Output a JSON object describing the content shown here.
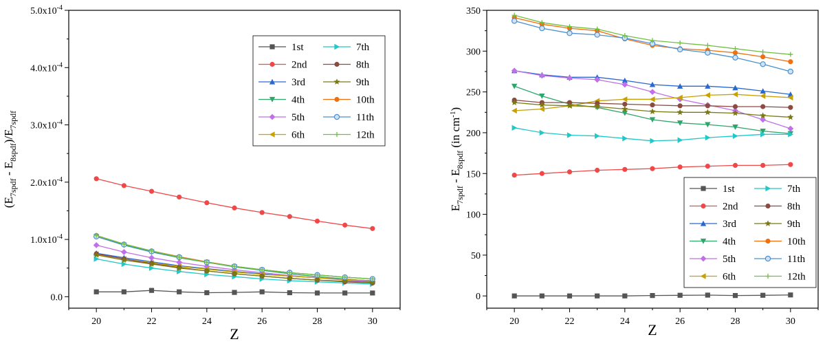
{
  "chart_data": [
    {
      "type": "line",
      "xlabel": "Z",
      "ylabel": "(E7spdf - E8spdf)/E7spdf",
      "ylabel_parts": {
        "open": "(E",
        "sub1": "7spdf",
        "minus": " - E",
        "sub2": "8spdf",
        "close": ")/E",
        "sub3": "7spdf"
      },
      "xlim": [
        19,
        31
      ],
      "ylim": [
        -2e-05,
        0.0005
      ],
      "x_ticks": [
        20,
        22,
        24,
        26,
        28,
        30
      ],
      "x_tick_labels": [
        "20",
        "22",
        "24",
        "26",
        "28",
        "30"
      ],
      "y_ticks": [
        0,
        0.0001,
        0.0002,
        0.0003,
        0.0004,
        0.0005
      ],
      "y_tick_labels": [
        {
          "mant": "0.0",
          "exp": ""
        },
        {
          "mant": "1.0x10",
          "exp": "-4"
        },
        {
          "mant": "2.0x10",
          "exp": "-4"
        },
        {
          "mant": "3.0x10",
          "exp": "-4"
        },
        {
          "mant": "4.0x10",
          "exp": "-4"
        },
        {
          "mant": "5.0x10",
          "exp": "-4"
        }
      ],
      "legend_position": "top-right",
      "x": [
        20,
        21,
        22,
        23,
        24,
        25,
        26,
        27,
        28,
        29,
        30
      ],
      "series": [
        {
          "name": "1st",
          "color": "#555555",
          "marker": "square",
          "values": [
            8.5e-06,
            8.5e-06,
            1.1e-05,
            8.5e-06,
            7e-06,
            7.5e-06,
            8.5e-06,
            7e-06,
            6.5e-06,
            6.5e-06,
            6.5e-06
          ]
        },
        {
          "name": "2nd",
          "color": "#f04848",
          "marker": "circle",
          "values": [
            0.000206,
            0.000194,
            0.000184,
            0.000174,
            0.000164,
            0.000155,
            0.000147,
            0.00014,
            0.000132,
            0.000125,
            0.000119
          ]
        },
        {
          "name": "3rd",
          "color": "#2868d0",
          "marker": "triangle-up",
          "values": [
            7.6e-05,
            6.8e-05,
            6.1e-05,
            5.4e-05,
            4.9e-05,
            4.4e-05,
            4e-05,
            3.6e-05,
            3.3e-05,
            3e-05,
            2.8e-05
          ]
        },
        {
          "name": "4th",
          "color": "#2ea56a",
          "marker": "triangle-down",
          "values": [
            0.000105,
            9e-05,
            7.8e-05,
            6.8e-05,
            6e-05,
            5.2e-05,
            4.6e-05,
            4e-05,
            3.5e-05,
            3.1e-05,
            2.7e-05
          ]
        },
        {
          "name": "5th",
          "color": "#c070e8",
          "marker": "diamond",
          "values": [
            9e-05,
            7.8e-05,
            6.8e-05,
            6e-05,
            5.3e-05,
            4.7e-05,
            4.2e-05,
            3.7e-05,
            3.3e-05,
            2.9e-05,
            2.6e-05
          ]
        },
        {
          "name": "6th",
          "color": "#c8a000",
          "marker": "triangle-left",
          "values": [
            7.4e-05,
            6.6e-05,
            5.9e-05,
            5.3e-05,
            4.8e-05,
            4.3e-05,
            3.9e-05,
            3.6e-05,
            3.3e-05,
            3e-05,
            2.8e-05
          ]
        },
        {
          "name": "7th",
          "color": "#20c8c8",
          "marker": "triangle-right",
          "values": [
            6.6e-05,
            5.7e-05,
            5e-05,
            4.4e-05,
            3.9e-05,
            3.5e-05,
            3.1e-05,
            2.8e-05,
            2.6e-05,
            2.4e-05,
            2.2e-05
          ]
        },
        {
          "name": "8th",
          "color": "#8c4a40",
          "marker": "circle",
          "values": [
            7.5e-05,
            6.6e-05,
            5.8e-05,
            5.1e-05,
            4.5e-05,
            4e-05,
            3.6e-05,
            3.2e-05,
            2.9e-05,
            2.6e-05,
            2.4e-05
          ]
        },
        {
          "name": "9th",
          "color": "#7a7a10",
          "marker": "star",
          "values": [
            7.3e-05,
            6.4e-05,
            5.7e-05,
            5e-05,
            4.5e-05,
            4e-05,
            3.6e-05,
            3.2e-05,
            2.9e-05,
            2.7e-05,
            2.5e-05
          ]
        },
        {
          "name": "10th",
          "color": "#f07010",
          "marker": "circle",
          "values": [
            0.000107,
            9.2e-05,
            8e-05,
            7e-05,
            6.1e-05,
            5.3e-05,
            4.7e-05,
            4.2e-05,
            3.8e-05,
            3.4e-05,
            3.1e-05
          ]
        },
        {
          "name": "11th",
          "color": "#4a90d0",
          "marker": "circle-open",
          "values": [
            0.000105,
            9.1e-05,
            7.9e-05,
            6.9e-05,
            6e-05,
            5.3e-05,
            4.7e-05,
            4.2e-05,
            3.8e-05,
            3.4e-05,
            3.1e-05
          ]
        },
        {
          "name": "12th",
          "color": "#70c040",
          "marker": "plus",
          "values": [
            0.000107,
            9.2e-05,
            8e-05,
            6.9e-05,
            6e-05,
            5.3e-05,
            4.7e-05,
            4.2e-05,
            3.8e-05,
            3.4e-05,
            3.1e-05
          ]
        }
      ]
    },
    {
      "type": "line",
      "xlabel": "Z",
      "ylabel": "E7spdf - E8spdf (in cm-1)",
      "ylabel_parts": {
        "open": "E",
        "sub1": "7spdf",
        "minus": " - E",
        "sub2": "8spdf",
        "unit": " (in cm",
        "sup": "-1",
        "close": ")"
      },
      "xlim": [
        19,
        31
      ],
      "ylim": [
        -15,
        350
      ],
      "x_ticks": [
        20,
        22,
        24,
        26,
        28,
        30
      ],
      "x_tick_labels": [
        "20",
        "22",
        "24",
        "26",
        "28",
        "30"
      ],
      "y_ticks": [
        0,
        50,
        100,
        150,
        200,
        250,
        300,
        350
      ],
      "y_tick_labels": [
        "0",
        "50",
        "100",
        "150",
        "200",
        "250",
        "300",
        "350"
      ],
      "legend_position": "bottom-right",
      "x": [
        20,
        21,
        22,
        23,
        24,
        25,
        26,
        27,
        28,
        29,
        30
      ],
      "series": [
        {
          "name": "1st",
          "color": "#555555",
          "marker": "square",
          "values": [
            0,
            0,
            0,
            0,
            0,
            0.5,
            0.8,
            1,
            0.5,
            0.8,
            1.2
          ]
        },
        {
          "name": "2nd",
          "color": "#f04848",
          "marker": "circle",
          "values": [
            148,
            150,
            152,
            154,
            155,
            156,
            158,
            159,
            160,
            160,
            161
          ]
        },
        {
          "name": "3rd",
          "color": "#2868d0",
          "marker": "triangle-up",
          "values": [
            276,
            271,
            268,
            268,
            264,
            259,
            257,
            257,
            255,
            251,
            247
          ]
        },
        {
          "name": "4th",
          "color": "#2ea56a",
          "marker": "triangle-down",
          "values": [
            257,
            245,
            235,
            231,
            224,
            216,
            212,
            210,
            207,
            202,
            199
          ]
        },
        {
          "name": "5th",
          "color": "#c070e8",
          "marker": "diamond",
          "values": [
            276,
            270,
            267,
            265,
            259,
            250,
            241,
            234,
            227,
            216,
            205
          ]
        },
        {
          "name": "6th",
          "color": "#c8a000",
          "marker": "triangle-left",
          "values": [
            227,
            229,
            233,
            239,
            241,
            241,
            243,
            246,
            247,
            245,
            243
          ]
        },
        {
          "name": "7th",
          "color": "#20c8c8",
          "marker": "triangle-right",
          "values": [
            206,
            200,
            197,
            196,
            193,
            190,
            191,
            194,
            196,
            198,
            198
          ]
        },
        {
          "name": "8th",
          "color": "#8c4a40",
          "marker": "circle",
          "values": [
            240,
            237,
            237,
            236,
            235,
            234,
            233,
            233,
            232,
            232,
            231
          ]
        },
        {
          "name": "9th",
          "color": "#7a7a10",
          "marker": "star",
          "values": [
            237,
            234,
            233,
            232,
            229,
            226,
            225,
            225,
            224,
            221,
            219
          ]
        },
        {
          "name": "10th",
          "color": "#f07010",
          "marker": "circle",
          "values": [
            341,
            333,
            328,
            325,
            315,
            307,
            303,
            301,
            298,
            293,
            287
          ]
        },
        {
          "name": "11th",
          "color": "#4a90d0",
          "marker": "circle-open",
          "values": [
            337,
            328,
            322,
            320,
            316,
            309,
            302,
            298,
            292,
            284,
            275
          ]
        },
        {
          "name": "12th",
          "color": "#70c040",
          "marker": "plus",
          "values": [
            344,
            335,
            330,
            327,
            319,
            313,
            310,
            307,
            303,
            299,
            296
          ]
        }
      ]
    }
  ]
}
